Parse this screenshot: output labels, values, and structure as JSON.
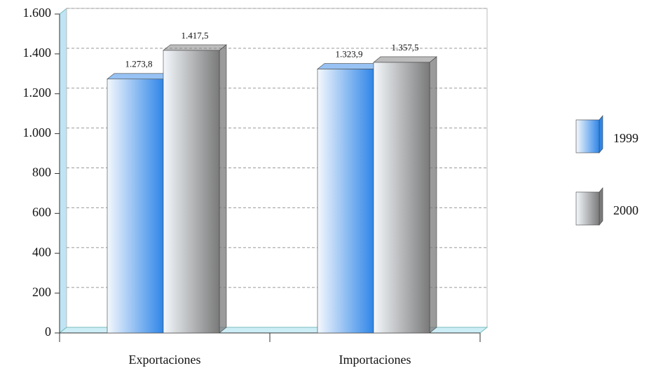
{
  "chart_data": {
    "type": "bar3d",
    "categories": [
      "Exportaciones",
      "Importaciones"
    ],
    "series": [
      {
        "name": "1999",
        "color": "#2f86e8",
        "values": [
          1273.8,
          1323.9
        ],
        "value_labels": [
          "1.273,8",
          "1.323,9"
        ]
      },
      {
        "name": "2000",
        "color": "#7a7a7a",
        "values": [
          1417.5,
          1357.5
        ],
        "value_labels": [
          "1.417,5",
          "1.357,5"
        ]
      }
    ],
    "ylim": [
      0,
      1600
    ],
    "yticks": [
      0,
      200,
      400,
      600,
      800,
      {
        "value": 1000,
        "label": "1.000"
      },
      {
        "value": 1200,
        "label": "1.200"
      },
      {
        "value": 1400,
        "label": "1.400"
      },
      {
        "value": 1600,
        "label": "1.600"
      }
    ],
    "grid": true,
    "legend": "right"
  }
}
